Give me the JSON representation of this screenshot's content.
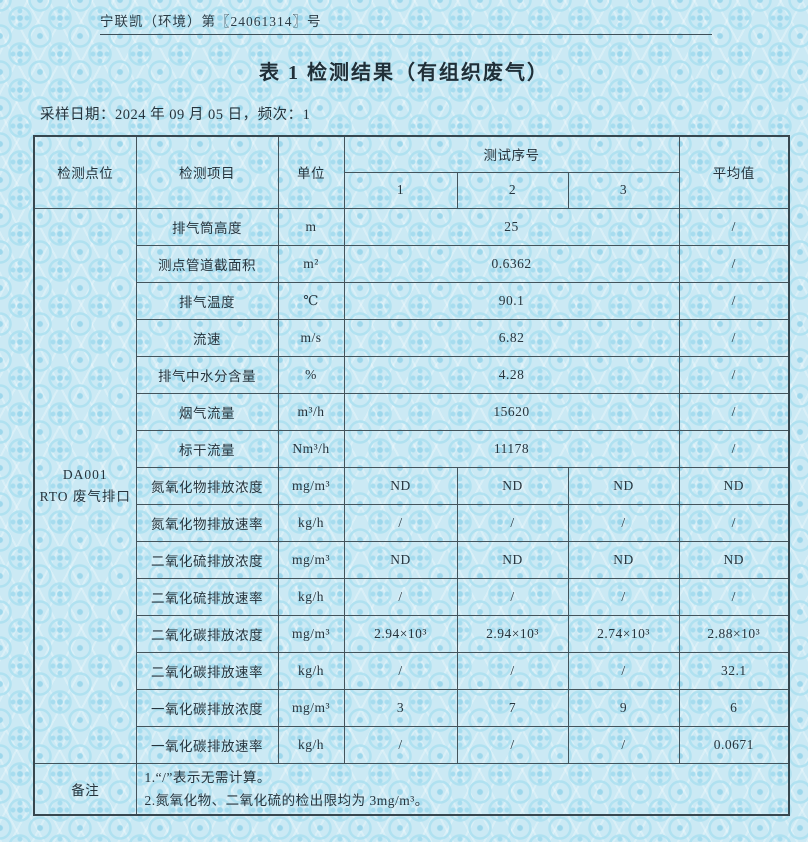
{
  "header": {
    "doc_number": "宁联凯（环境）第〖24061314〗号",
    "title": "表 1 检测结果（有组织废气）",
    "date_line": "采样日期：2024 年 09 月 05 日，频次：1"
  },
  "table": {
    "columns": {
      "point": "检测点位",
      "item": "检测项目",
      "unit": "单位",
      "test_group": "测试序号",
      "test_numbers": [
        "1",
        "2",
        "3"
      ],
      "average": "平均值"
    },
    "location": {
      "line1": "DA001",
      "line2": "RTO 废气排口"
    },
    "rows": [
      {
        "item": "排气筒高度",
        "unit": "m",
        "span": "25",
        "avg": "/"
      },
      {
        "item": "测点管道截面积",
        "unit": "m²",
        "span": "0.6362",
        "avg": "/"
      },
      {
        "item": "排气温度",
        "unit": "℃",
        "span": "90.1",
        "avg": "/"
      },
      {
        "item": "流速",
        "unit": "m/s",
        "span": "6.82",
        "avg": "/"
      },
      {
        "item": "排气中水分含量",
        "unit": "%",
        "span": "4.28",
        "avg": "/"
      },
      {
        "item": "烟气流量",
        "unit": "m³/h",
        "span": "15620",
        "avg": "/"
      },
      {
        "item": "标干流量",
        "unit": "Nm³/h",
        "span": "11178",
        "avg": "/"
      },
      {
        "item": "氮氧化物排放浓度",
        "unit": "mg/m³",
        "values": [
          "ND",
          "ND",
          "ND"
        ],
        "avg": "ND"
      },
      {
        "item": "氮氧化物排放速率",
        "unit": "kg/h",
        "values": [
          "/",
          "/",
          "/"
        ],
        "avg": "/"
      },
      {
        "item": "二氧化硫排放浓度",
        "unit": "mg/m³",
        "values": [
          "ND",
          "ND",
          "ND"
        ],
        "avg": "ND"
      },
      {
        "item": "二氧化硫排放速率",
        "unit": "kg/h",
        "values": [
          "/",
          "/",
          "/"
        ],
        "avg": "/"
      },
      {
        "item": "二氧化碳排放浓度",
        "unit": "mg/m³",
        "values": [
          "2.94×10³",
          "2.94×10³",
          "2.74×10³"
        ],
        "avg": "2.88×10³"
      },
      {
        "item": "二氧化碳排放速率",
        "unit": "kg/h",
        "values": [
          "/",
          "/",
          "/"
        ],
        "avg": "32.1"
      },
      {
        "item": "一氧化碳排放浓度",
        "unit": "mg/m³",
        "values": [
          "3",
          "7",
          "9"
        ],
        "avg": "6"
      },
      {
        "item": "一氧化碳排放速率",
        "unit": "kg/h",
        "values": [
          "/",
          "/",
          "/"
        ],
        "avg": "0.0671"
      }
    ],
    "note_label": "备注",
    "notes": [
      "1.“/”表示无需计算。",
      "2.氮氧化物、二氧化硫的检出限均为 3mg/m³。"
    ]
  },
  "colors": {
    "paper_base": "#cbe9f4",
    "pattern_motif": "#a3dbee",
    "text": "#26343d",
    "table_border": "#43545c"
  }
}
